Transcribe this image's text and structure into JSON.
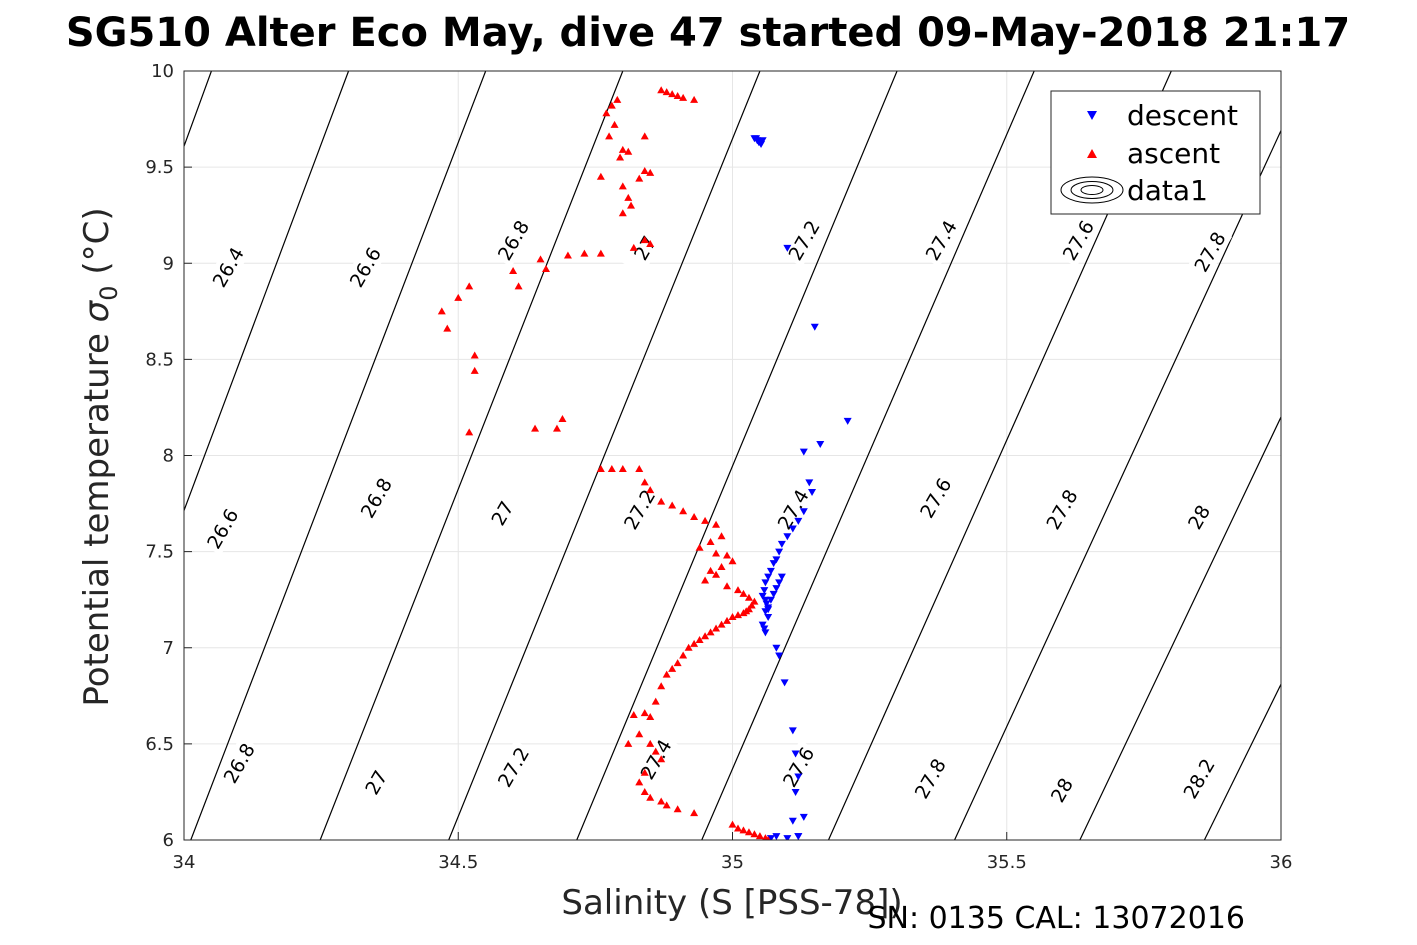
{
  "chart_data": {
    "type": "scatter",
    "title": "SG510 Alter Eco May, dive 47 started 09-May-2018 21:17",
    "xlabel": "Salinity (S [PSS-78])",
    "ylabel_main": "Potential temperature ",
    "ylabel_symbol": "σ",
    "ylabel_subscript": "0",
    "ylabel_unit": " (°C)",
    "xlim": [
      34,
      36
    ],
    "ylim": [
      6,
      10
    ],
    "xticks": [
      34,
      34.5,
      35,
      35.5,
      36
    ],
    "xtick_labels": [
      "34",
      "34.5",
      "35",
      "35.5",
      "36"
    ],
    "yticks": [
      6,
      6.5,
      7,
      7.5,
      8,
      8.5,
      9,
      9.5,
      10
    ],
    "ytick_labels": [
      "6",
      "6.5",
      "7",
      "7.5",
      "8",
      "8.5",
      "9",
      "9.5",
      "10"
    ],
    "grid": true,
    "legend_position": "top-right",
    "legend": [
      {
        "name": "descent",
        "marker": "triangle-down",
        "color": "#0000ff"
      },
      {
        "name": "ascent",
        "marker": "triangle-up",
        "color": "#ff0000"
      },
      {
        "name": "data1",
        "marker": "contour",
        "color": "#000000"
      }
    ],
    "footer": "SN: 0135  CAL: 13072016",
    "contours": [
      {
        "ref": [
          34.05,
          10.0
        ],
        "slope": 7.83
      },
      {
        "ref": [
          34.3,
          10.0
        ],
        "slope": 7.62
      },
      {
        "ref": [
          34.55,
          10.0
        ],
        "slope": 7.44
      },
      {
        "ref": [
          34.8,
          10.0
        ],
        "slope": 7.25
      },
      {
        "ref": [
          35.05,
          10.0
        ],
        "slope": 7.05
      },
      {
        "ref": [
          35.3,
          10.0
        ],
        "slope": 6.85
      },
      {
        "ref": [
          35.55,
          10.0
        ],
        "slope": 6.6
      },
      {
        "ref": [
          35.8,
          10.0
        ],
        "slope": 6.4
      },
      {
        "ref": [
          36.05,
          10.0
        ],
        "slope": 6.2
      },
      {
        "ref": [
          36.3,
          10.0
        ],
        "slope": 6.0
      },
      {
        "ref": [
          36.55,
          10.0
        ],
        "slope": 5.8
      }
    ],
    "contour_labels": [
      {
        "text": "26.4",
        "x": 34.08,
        "y": 8.98
      },
      {
        "text": "26.6",
        "x": 34.33,
        "y": 8.98
      },
      {
        "text": "26.8",
        "x": 34.6,
        "y": 9.12
      },
      {
        "text": "27",
        "x": 34.84,
        "y": 9.08
      },
      {
        "text": "27.2",
        "x": 35.13,
        "y": 9.12
      },
      {
        "text": "27.4",
        "x": 35.38,
        "y": 9.12
      },
      {
        "text": "27.6",
        "x": 35.63,
        "y": 9.12
      },
      {
        "text": "27.8",
        "x": 35.87,
        "y": 9.06
      },
      {
        "text": "26.6",
        "x": 34.07,
        "y": 7.62
      },
      {
        "text": "26.8",
        "x": 34.35,
        "y": 7.78
      },
      {
        "text": "27",
        "x": 34.58,
        "y": 7.7
      },
      {
        "text": "27.2",
        "x": 34.83,
        "y": 7.72
      },
      {
        "text": "27.4",
        "x": 35.11,
        "y": 7.72
      },
      {
        "text": "27.6",
        "x": 35.37,
        "y": 7.78
      },
      {
        "text": "27.8",
        "x": 35.6,
        "y": 7.72
      },
      {
        "text": "28",
        "x": 35.85,
        "y": 7.68
      },
      {
        "text": "26.8",
        "x": 34.1,
        "y": 6.4
      },
      {
        "text": "27",
        "x": 34.35,
        "y": 6.3
      },
      {
        "text": "27.2",
        "x": 34.6,
        "y": 6.38
      },
      {
        "text": "27.4",
        "x": 34.86,
        "y": 6.42
      },
      {
        "text": "27.6",
        "x": 35.12,
        "y": 6.38
      },
      {
        "text": "27.8",
        "x": 35.36,
        "y": 6.32
      },
      {
        "text": "28",
        "x": 35.6,
        "y": 6.26
      },
      {
        "text": "28.2",
        "x": 35.85,
        "y": 6.32
      }
    ],
    "series": [
      {
        "name": "descent",
        "marker": "triangle-down",
        "color": "#0000ff",
        "x": [
          35.04,
          35.045,
          35.05,
          35.052,
          35.055,
          35.048,
          35.043,
          35.1,
          35.15,
          35.21,
          35.16,
          35.13,
          35.14,
          35.145,
          35.13,
          35.12,
          35.11,
          35.1,
          35.09,
          35.085,
          35.08,
          35.075,
          35.07,
          35.065,
          35.06,
          35.058,
          35.055,
          35.06,
          35.062,
          35.065,
          35.07,
          35.075,
          35.08,
          35.085,
          35.09,
          35.06,
          35.065,
          35.055,
          35.058,
          35.06,
          35.065,
          35.08,
          35.085,
          35.095,
          35.11,
          35.115,
          35.12,
          35.115,
          35.11,
          35.12,
          35.07,
          35.08,
          35.1,
          35.12,
          35.13
        ],
        "y": [
          9.65,
          9.64,
          9.63,
          9.62,
          9.64,
          9.63,
          9.65,
          9.08,
          8.67,
          8.18,
          8.06,
          8.02,
          7.86,
          7.81,
          7.71,
          7.66,
          7.62,
          7.58,
          7.54,
          7.5,
          7.46,
          7.44,
          7.4,
          7.37,
          7.34,
          7.3,
          7.27,
          7.25,
          7.23,
          7.21,
          7.25,
          7.28,
          7.31,
          7.34,
          7.37,
          7.19,
          7.16,
          7.12,
          7.1,
          7.08,
          7.2,
          7.0,
          6.96,
          6.82,
          6.57,
          6.45,
          6.33,
          6.25,
          6.1,
          6.02,
          6.01,
          6.02,
          6.01,
          6.02,
          6.12
        ]
      },
      {
        "name": "ascent",
        "marker": "triangle-up",
        "color": "#ff0000",
        "x": [
          34.87,
          34.88,
          34.89,
          34.9,
          34.91,
          34.93,
          34.79,
          34.78,
          34.77,
          34.785,
          34.775,
          34.84,
          34.8,
          34.81,
          34.795,
          34.76,
          34.84,
          34.83,
          34.85,
          34.8,
          34.81,
          34.815,
          34.8,
          34.84,
          34.85,
          34.82,
          34.76,
          34.73,
          34.7,
          34.65,
          34.66,
          34.6,
          34.61,
          34.47,
          34.48,
          34.5,
          34.52,
          34.53,
          34.53,
          34.52,
          34.64,
          34.69,
          34.68,
          34.76,
          34.78,
          34.8,
          34.83,
          34.84,
          34.85,
          34.87,
          34.89,
          34.91,
          34.93,
          34.95,
          34.97,
          34.98,
          34.96,
          34.94,
          34.97,
          34.99,
          35.0,
          34.98,
          34.96,
          34.97,
          34.95,
          34.99,
          35.01,
          35.02,
          35.03,
          35.04,
          35.035,
          35.03,
          35.025,
          35.02,
          35.01,
          35.0,
          34.99,
          34.98,
          34.97,
          34.96,
          34.95,
          34.94,
          34.93,
          34.92,
          34.91,
          34.9,
          34.89,
          34.88,
          34.87,
          34.86,
          34.85,
          34.84,
          34.82,
          34.81,
          34.83,
          34.85,
          34.86,
          34.87,
          34.84,
          34.83,
          34.84,
          34.85,
          34.87,
          34.88,
          34.9,
          34.93,
          35.0,
          35.01,
          35.02,
          35.03,
          35.04,
          35.05,
          35.06,
          35.065
        ],
        "y": [
          9.9,
          9.89,
          9.88,
          9.87,
          9.86,
          9.85,
          9.85,
          9.82,
          9.78,
          9.72,
          9.66,
          9.66,
          9.59,
          9.58,
          9.55,
          9.45,
          9.48,
          9.44,
          9.47,
          9.4,
          9.34,
          9.3,
          9.26,
          9.12,
          9.1,
          9.08,
          9.05,
          9.05,
          9.04,
          9.02,
          8.97,
          8.96,
          8.88,
          8.75,
          8.66,
          8.82,
          8.88,
          8.52,
          8.44,
          8.12,
          8.14,
          8.19,
          8.14,
          7.93,
          7.93,
          7.93,
          7.93,
          7.86,
          7.82,
          7.76,
          7.74,
          7.71,
          7.68,
          7.66,
          7.64,
          7.58,
          7.55,
          7.52,
          7.49,
          7.48,
          7.45,
          7.42,
          7.4,
          7.38,
          7.35,
          7.32,
          7.3,
          7.28,
          7.26,
          7.24,
          7.22,
          7.2,
          7.19,
          7.18,
          7.17,
          7.16,
          7.14,
          7.12,
          7.1,
          7.08,
          7.06,
          7.04,
          7.02,
          7.0,
          6.96,
          6.92,
          6.89,
          6.86,
          6.8,
          6.72,
          6.64,
          6.66,
          6.65,
          6.5,
          6.55,
          6.5,
          6.46,
          6.42,
          6.35,
          6.3,
          6.25,
          6.22,
          6.2,
          6.18,
          6.16,
          6.14,
          6.08,
          6.06,
          6.05,
          6.04,
          6.03,
          6.02,
          6.01,
          6.0
        ]
      }
    ]
  }
}
